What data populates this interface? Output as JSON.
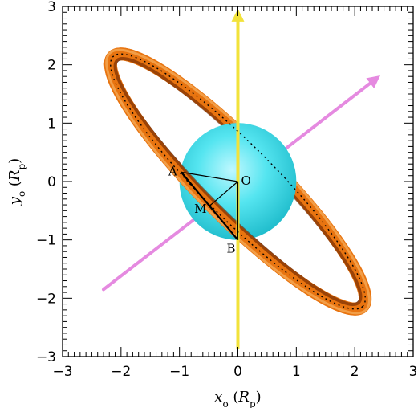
{
  "figure": {
    "axes": {
      "x": {
        "label": "x",
        "label_sub": "o",
        "unit": "R",
        "unit_sub": "p",
        "range": [
          -3,
          3
        ],
        "ticks": [
          -3,
          -2,
          -1,
          0,
          1,
          2,
          3
        ],
        "tick_labels": [
          "−3",
          "−2",
          "−1",
          "0",
          "1",
          "2",
          "3"
        ]
      },
      "y": {
        "label": "y",
        "label_sub": "o",
        "unit": "R",
        "unit_sub": "p",
        "range": [
          -3,
          3
        ],
        "ticks": [
          -3,
          -2,
          -1,
          0,
          1,
          2,
          3
        ],
        "tick_labels": [
          "−3",
          "−2",
          "−1",
          "0",
          "1",
          "2",
          "3"
        ]
      }
    },
    "planet": {
      "center": [
        0,
        0
      ],
      "radius": 1,
      "color": "#2fd8e4"
    },
    "ring": {
      "center": [
        0,
        0
      ],
      "semi_major": 3.02,
      "semi_minor": 0.62,
      "angle_deg": -45,
      "color": "#e87410"
    },
    "spin_axis": {
      "from": [
        0,
        -2.85
      ],
      "to": [
        0,
        2.85
      ],
      "color": "#f2e23a"
    },
    "orbit_normal": {
      "from": [
        -2.3,
        -1.85
      ],
      "to": [
        2.35,
        1.75
      ],
      "color": "#e58ae0"
    },
    "points": [
      {
        "id": "A",
        "label": "A",
        "x": -0.97,
        "y": 0.16
      },
      {
        "id": "B",
        "label": "B",
        "x": 0.0,
        "y": -1.0
      },
      {
        "id": "M",
        "label": "M",
        "x": -0.5,
        "y": -0.43
      },
      {
        "id": "O",
        "label": "O",
        "x": 0.0,
        "y": 0.0
      }
    ]
  }
}
